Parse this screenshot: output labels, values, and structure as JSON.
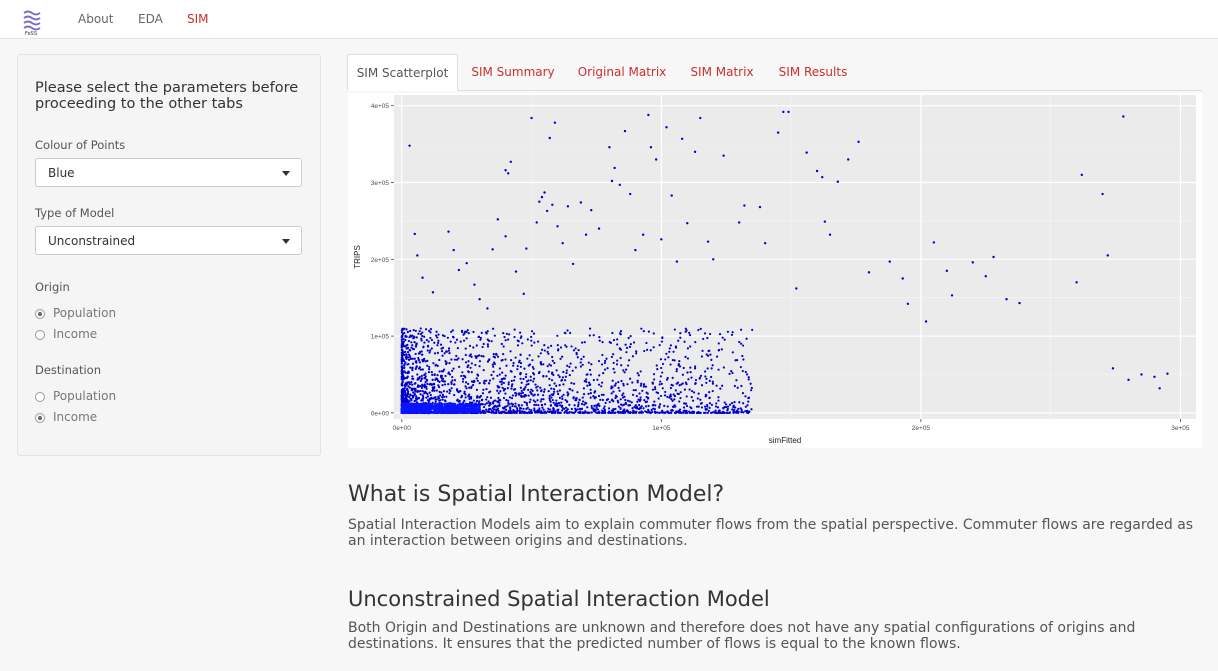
{
  "navbar": {
    "logo_text": "FeSS",
    "links": [
      {
        "label": "About",
        "active": false
      },
      {
        "label": "EDA",
        "active": false
      },
      {
        "label": "SIM",
        "active": true
      }
    ]
  },
  "sidebar": {
    "heading": "Please select the parameters before proceeding to the other tabs",
    "colour": {
      "label": "Colour of Points",
      "value": "Blue"
    },
    "model": {
      "label": "Type of Model",
      "value": "Unconstrained"
    },
    "origin": {
      "label": "Origin",
      "options": [
        "Population",
        "Income"
      ],
      "selected": "Population"
    },
    "destination": {
      "label": "Destination",
      "options": [
        "Population",
        "Income"
      ],
      "selected": "Income"
    }
  },
  "tabs": [
    {
      "label": "SIM Scatterplot",
      "active": true
    },
    {
      "label": "SIM Summary",
      "active": false
    },
    {
      "label": "Original Matrix",
      "active": false
    },
    {
      "label": "SIM Matrix",
      "active": false
    },
    {
      "label": "SIM Results",
      "active": false
    }
  ],
  "chart_data": {
    "type": "scatter",
    "xlabel": "simFitted",
    "ylabel": "TRIPS",
    "xlim": [
      -3000,
      306000
    ],
    "ylim": [
      -8000,
      414000
    ],
    "x_ticks": [
      0,
      100000,
      200000,
      300000
    ],
    "x_tick_labels": [
      "0e+00",
      "1e+05",
      "2e+05",
      "3e+05"
    ],
    "y_ticks": [
      0,
      100000,
      200000,
      300000,
      400000
    ],
    "y_tick_labels": [
      "0e+00",
      "1e+05",
      "2e+05",
      "3e+05",
      "4e+05"
    ],
    "grid": true,
    "point_color": "#0000cc",
    "points": [
      [
        3000,
        348000
      ],
      [
        5000,
        233000
      ],
      [
        6000,
        205000
      ],
      [
        8000,
        176000
      ],
      [
        12000,
        157000
      ],
      [
        18000,
        236000
      ],
      [
        20000,
        212000
      ],
      [
        22000,
        186000
      ],
      [
        25000,
        195000
      ],
      [
        28000,
        167000
      ],
      [
        30000,
        148000
      ],
      [
        33000,
        136000
      ],
      [
        35000,
        213000
      ],
      [
        37000,
        252000
      ],
      [
        40000,
        230000
      ],
      [
        40000,
        316000
      ],
      [
        41000,
        312000
      ],
      [
        42000,
        327000
      ],
      [
        44000,
        184000
      ],
      [
        47000,
        155000
      ],
      [
        48000,
        214000
      ],
      [
        50000,
        384000
      ],
      [
        52000,
        248000
      ],
      [
        53000,
        275000
      ],
      [
        54000,
        281000
      ],
      [
        55000,
        287000
      ],
      [
        56000,
        263000
      ],
      [
        57000,
        358000
      ],
      [
        58000,
        271000
      ],
      [
        59000,
        378000
      ],
      [
        60000,
        243000
      ],
      [
        62000,
        221000
      ],
      [
        64000,
        269000
      ],
      [
        66000,
        194000
      ],
      [
        69000,
        274000
      ],
      [
        71000,
        232000
      ],
      [
        73000,
        264000
      ],
      [
        76000,
        240000
      ],
      [
        80000,
        346000
      ],
      [
        81000,
        302000
      ],
      [
        82000,
        319000
      ],
      [
        84000,
        297000
      ],
      [
        86000,
        367000
      ],
      [
        88000,
        285000
      ],
      [
        90000,
        212000
      ],
      [
        93000,
        232000
      ],
      [
        95000,
        388000
      ],
      [
        96000,
        346000
      ],
      [
        98000,
        330000
      ],
      [
        100000,
        226000
      ],
      [
        102000,
        372000
      ],
      [
        104000,
        283000
      ],
      [
        106000,
        197000
      ],
      [
        108000,
        357000
      ],
      [
        110000,
        247000
      ],
      [
        113000,
        340000
      ],
      [
        115000,
        384000
      ],
      [
        118000,
        223000
      ],
      [
        120000,
        200000
      ],
      [
        124000,
        335000
      ],
      [
        130000,
        248000
      ],
      [
        132000,
        270000
      ],
      [
        138000,
        268000
      ],
      [
        140000,
        221000
      ],
      [
        145000,
        365000
      ],
      [
        147000,
        392000
      ],
      [
        149000,
        392000
      ],
      [
        152000,
        162000
      ],
      [
        156000,
        339000
      ],
      [
        160000,
        315000
      ],
      [
        162000,
        307000
      ],
      [
        163000,
        249000
      ],
      [
        165000,
        232000
      ],
      [
        168000,
        301000
      ],
      [
        172000,
        330000
      ],
      [
        176000,
        353000
      ],
      [
        180000,
        183000
      ],
      [
        188000,
        197000
      ],
      [
        193000,
        175000
      ],
      [
        195000,
        142000
      ],
      [
        202000,
        119000
      ],
      [
        205000,
        222000
      ],
      [
        210000,
        185000
      ],
      [
        212000,
        153000
      ],
      [
        220000,
        196000
      ],
      [
        225000,
        178000
      ],
      [
        228000,
        203000
      ],
      [
        233000,
        148000
      ],
      [
        238000,
        143000
      ],
      [
        260000,
        170000
      ],
      [
        262000,
        310000
      ],
      [
        270000,
        285000
      ],
      [
        272000,
        205000
      ],
      [
        274000,
        58000
      ],
      [
        278000,
        386000
      ],
      [
        280000,
        43000
      ],
      [
        285000,
        50000
      ],
      [
        290000,
        47000
      ],
      [
        292000,
        32000
      ],
      [
        295000,
        51000
      ]
    ],
    "dense_region": {
      "x_range": [
        0,
        135000
      ],
      "y_range": [
        0,
        110000
      ],
      "count": 2600,
      "decay": 1.6
    }
  },
  "content": {
    "section1": {
      "title": "What is Spatial Interaction Model?",
      "text": "Spatial Interaction Models aim to explain commuter flows from the spatial perspective. Commuter flows are regarded as an interaction between origins and destinations."
    },
    "section2": {
      "title": "Unconstrained Spatial Interaction Model",
      "text": "Both Origin and Destinations are unknown and therefore does not have any spatial configurations of origins and destinations. It ensures that the predicted number of flows is equal to the known flows."
    }
  }
}
